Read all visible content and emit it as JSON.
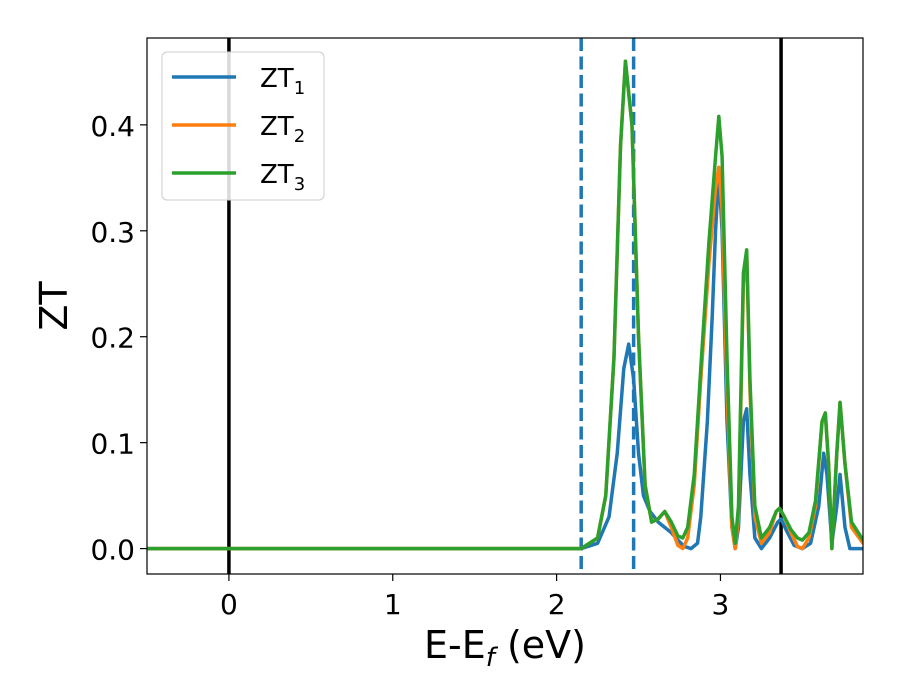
{
  "chart_data": {
    "type": "line",
    "xlabel": {
      "main": "E-E",
      "sub": "f",
      "suffix": " (eV)"
    },
    "ylabel": "ZT",
    "xlim": [
      -0.5,
      3.87
    ],
    "ylim": [
      -0.024,
      0.482
    ],
    "x_ticks": [
      {
        "value": 0,
        "label": "0"
      },
      {
        "value": 1,
        "label": "1"
      },
      {
        "value": 2,
        "label": "2"
      },
      {
        "value": 3,
        "label": "3"
      }
    ],
    "y_ticks": [
      {
        "value": 0.0,
        "label": "0.0"
      },
      {
        "value": 0.1,
        "label": "0.1"
      },
      {
        "value": 0.2,
        "label": "0.2"
      },
      {
        "value": 0.3,
        "label": "0.3"
      },
      {
        "value": 0.4,
        "label": "0.4"
      }
    ],
    "grid": false,
    "legend_position": "top-left",
    "vlines": [
      {
        "x": 0.0,
        "style": "solid",
        "color": "#000000"
      },
      {
        "x": 3.37,
        "style": "solid",
        "color": "#000000"
      },
      {
        "x": 2.15,
        "style": "dashed",
        "color": "#1f77b4"
      },
      {
        "x": 2.47,
        "style": "dashed",
        "color": "#1f77b4"
      }
    ],
    "series": [
      {
        "name": "ZT",
        "sub": "1",
        "color": "#1f77b4",
        "points": [
          [
            -0.5,
            0
          ],
          [
            2.15,
            0
          ],
          [
            2.25,
            0.005
          ],
          [
            2.32,
            0.03
          ],
          [
            2.37,
            0.09
          ],
          [
            2.41,
            0.17
          ],
          [
            2.44,
            0.193
          ],
          [
            2.47,
            0.16
          ],
          [
            2.5,
            0.09
          ],
          [
            2.53,
            0.05
          ],
          [
            2.57,
            0.035
          ],
          [
            2.62,
            0.025
          ],
          [
            2.66,
            0.02
          ],
          [
            2.7,
            0.015
          ],
          [
            2.74,
            0.008
          ],
          [
            2.78,
            0.002
          ],
          [
            2.82,
            0.0
          ],
          [
            2.86,
            0.005
          ],
          [
            2.88,
            0.03
          ],
          [
            2.92,
            0.12
          ],
          [
            2.95,
            0.22
          ],
          [
            2.97,
            0.3
          ],
          [
            2.99,
            0.355
          ],
          [
            3.01,
            0.3
          ],
          [
            3.04,
            0.12
          ],
          [
            3.07,
            0.02
          ],
          [
            3.09,
            0.0
          ],
          [
            3.11,
            0.02
          ],
          [
            3.14,
            0.12
          ],
          [
            3.16,
            0.132
          ],
          [
            3.18,
            0.07
          ],
          [
            3.21,
            0.01
          ],
          [
            3.25,
            0.0
          ],
          [
            3.3,
            0.01
          ],
          [
            3.35,
            0.025
          ],
          [
            3.37,
            0.028
          ],
          [
            3.4,
            0.018
          ],
          [
            3.45,
            0.003
          ],
          [
            3.5,
            0.0
          ],
          [
            3.55,
            0.005
          ],
          [
            3.6,
            0.04
          ],
          [
            3.63,
            0.09
          ],
          [
            3.65,
            0.07
          ],
          [
            3.68,
            0.005
          ],
          [
            3.71,
            0.04
          ],
          [
            3.73,
            0.07
          ],
          [
            3.76,
            0.02
          ],
          [
            3.79,
            0.0
          ],
          [
            3.87,
            0.0
          ]
        ]
      },
      {
        "name": "ZT",
        "sub": "2",
        "color": "#ff7f0e",
        "points": [
          [
            -0.5,
            0
          ],
          [
            2.15,
            0
          ],
          [
            2.25,
            0.01
          ],
          [
            2.3,
            0.05
          ],
          [
            2.35,
            0.18
          ],
          [
            2.39,
            0.38
          ],
          [
            2.42,
            0.46
          ],
          [
            2.46,
            0.4
          ],
          [
            2.5,
            0.2
          ],
          [
            2.54,
            0.06
          ],
          [
            2.58,
            0.025
          ],
          [
            2.62,
            0.028
          ],
          [
            2.66,
            0.035
          ],
          [
            2.7,
            0.02
          ],
          [
            2.74,
            0.003
          ],
          [
            2.77,
            0.0
          ],
          [
            2.8,
            0.01
          ],
          [
            2.84,
            0.06
          ],
          [
            2.88,
            0.16
          ],
          [
            2.93,
            0.27
          ],
          [
            2.97,
            0.34
          ],
          [
            2.99,
            0.36
          ],
          [
            3.01,
            0.32
          ],
          [
            3.04,
            0.15
          ],
          [
            3.07,
            0.02
          ],
          [
            3.09,
            0.0
          ],
          [
            3.11,
            0.03
          ],
          [
            3.14,
            0.25
          ],
          [
            3.16,
            0.28
          ],
          [
            3.18,
            0.15
          ],
          [
            3.21,
            0.03
          ],
          [
            3.25,
            0.005
          ],
          [
            3.3,
            0.015
          ],
          [
            3.34,
            0.035
          ],
          [
            3.36,
            0.038
          ],
          [
            3.39,
            0.03
          ],
          [
            3.43,
            0.015
          ],
          [
            3.47,
            0.002
          ],
          [
            3.5,
            0.0
          ],
          [
            3.54,
            0.01
          ],
          [
            3.58,
            0.04
          ],
          [
            3.62,
            0.12
          ],
          [
            3.64,
            0.128
          ],
          [
            3.66,
            0.08
          ],
          [
            3.68,
            0.0
          ],
          [
            3.71,
            0.09
          ],
          [
            3.73,
            0.138
          ],
          [
            3.76,
            0.08
          ],
          [
            3.8,
            0.02
          ],
          [
            3.87,
            0.005
          ]
        ]
      },
      {
        "name": "ZT",
        "sub": "3",
        "color": "#2ca02c",
        "points": [
          [
            -0.5,
            0
          ],
          [
            2.15,
            0
          ],
          [
            2.25,
            0.01
          ],
          [
            2.3,
            0.05
          ],
          [
            2.35,
            0.18
          ],
          [
            2.39,
            0.38
          ],
          [
            2.42,
            0.46
          ],
          [
            2.46,
            0.4
          ],
          [
            2.5,
            0.2
          ],
          [
            2.54,
            0.06
          ],
          [
            2.58,
            0.025
          ],
          [
            2.62,
            0.028
          ],
          [
            2.66,
            0.035
          ],
          [
            2.7,
            0.025
          ],
          [
            2.74,
            0.012
          ],
          [
            2.77,
            0.01
          ],
          [
            2.8,
            0.02
          ],
          [
            2.84,
            0.07
          ],
          [
            2.88,
            0.17
          ],
          [
            2.93,
            0.29
          ],
          [
            2.97,
            0.37
          ],
          [
            2.99,
            0.408
          ],
          [
            3.01,
            0.37
          ],
          [
            3.04,
            0.18
          ],
          [
            3.07,
            0.03
          ],
          [
            3.09,
            0.005
          ],
          [
            3.11,
            0.04
          ],
          [
            3.14,
            0.26
          ],
          [
            3.16,
            0.282
          ],
          [
            3.18,
            0.16
          ],
          [
            3.21,
            0.04
          ],
          [
            3.25,
            0.01
          ],
          [
            3.3,
            0.02
          ],
          [
            3.34,
            0.035
          ],
          [
            3.36,
            0.038
          ],
          [
            3.39,
            0.03
          ],
          [
            3.43,
            0.018
          ],
          [
            3.47,
            0.01
          ],
          [
            3.5,
            0.008
          ],
          [
            3.54,
            0.015
          ],
          [
            3.58,
            0.045
          ],
          [
            3.62,
            0.12
          ],
          [
            3.64,
            0.128
          ],
          [
            3.66,
            0.08
          ],
          [
            3.68,
            0.0
          ],
          [
            3.71,
            0.09
          ],
          [
            3.73,
            0.138
          ],
          [
            3.76,
            0.08
          ],
          [
            3.8,
            0.025
          ],
          [
            3.87,
            0.008
          ]
        ]
      }
    ]
  }
}
